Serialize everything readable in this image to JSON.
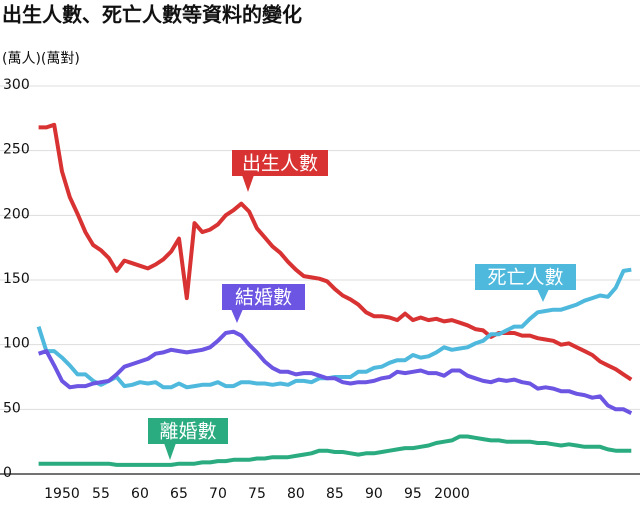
{
  "chart_data": {
    "type": "line",
    "title": "出生人數、死亡人數等資料的變化",
    "y_axis_label": "(萬人)(萬對)",
    "x": [
      1947,
      1948,
      1949,
      1950,
      1951,
      1952,
      1953,
      1954,
      1955,
      1956,
      1957,
      1958,
      1959,
      1960,
      1961,
      1962,
      1963,
      1964,
      1965,
      1966,
      1967,
      1968,
      1969,
      1970,
      1971,
      1972,
      1973,
      1974,
      1975,
      1976,
      1977,
      1978,
      1979,
      1980,
      1981,
      1982,
      1983,
      1984,
      1985,
      1986,
      1987,
      1988,
      1989,
      1990,
      1991,
      1992,
      1993,
      1994,
      1995,
      1996,
      1997,
      1998,
      1999,
      2000,
      2001,
      2002,
      2003,
      2004,
      2005,
      2006,
      2007,
      2008,
      2009,
      2010,
      2011,
      2012,
      2013,
      2014,
      2015,
      2016,
      2017,
      2018,
      2019,
      2020,
      2021,
      2022,
      2023
    ],
    "series": [
      {
        "name": "出生人數",
        "color": "#d83232",
        "values": [
          268,
          268,
          270,
          234,
          214,
          201,
          187,
          177,
          173,
          167,
          157,
          165,
          163,
          161,
          159,
          162,
          166,
          172,
          182,
          136,
          194,
          187,
          189,
          193,
          200,
          204,
          209,
          203,
          190,
          183,
          176,
          171,
          164,
          158,
          153,
          152,
          151,
          149,
          143,
          138,
          135,
          131,
          125,
          122,
          122,
          121,
          119,
          124,
          119,
          121,
          119,
          120,
          118,
          119,
          117,
          115,
          112,
          111,
          106,
          109,
          109,
          109,
          107,
          107,
          105,
          104,
          103,
          100,
          101,
          98,
          95,
          92,
          87,
          84,
          81,
          77,
          73
        ]
      },
      {
        "name": "死亡人數",
        "color": "#4fb9dd",
        "values": [
          114,
          95,
          95,
          90,
          84,
          77,
          77,
          72,
          69,
          72,
          75,
          68,
          69,
          71,
          70,
          71,
          67,
          67,
          70,
          67,
          68,
          69,
          69,
          71,
          68,
          68,
          71,
          71,
          70,
          70,
          69,
          70,
          69,
          72,
          72,
          71,
          74,
          74,
          75,
          75,
          75,
          79,
          79,
          82,
          83,
          86,
          88,
          88,
          92,
          90,
          91,
          94,
          98,
          96,
          97,
          98,
          101,
          103,
          108,
          108,
          111,
          114,
          114,
          120,
          125,
          126,
          127,
          127,
          129,
          131,
          134,
          136,
          138,
          137,
          144,
          157,
          158
        ]
      },
      {
        "name": "結婚數",
        "color": "#6b55e2",
        "values": [
          93,
          95,
          84,
          72,
          67,
          68,
          68,
          70,
          71,
          72,
          77,
          83,
          85,
          87,
          89,
          93,
          94,
          96,
          95,
          94,
          95,
          96,
          98,
          103,
          109,
          110,
          107,
          100,
          94,
          87,
          82,
          79,
          79,
          77,
          78,
          78,
          76,
          74,
          74,
          71,
          70,
          71,
          71,
          72,
          74,
          75,
          79,
          78,
          79,
          80,
          78,
          78,
          76,
          80,
          80,
          76,
          74,
          72,
          71,
          73,
          72,
          73,
          71,
          70,
          66,
          67,
          66,
          64,
          64,
          62,
          61,
          59,
          60,
          53,
          50,
          50,
          47
        ]
      },
      {
        "name": "離婚數",
        "color": "#2aab80",
        "values": [
          8,
          8,
          8,
          8,
          8,
          8,
          8,
          8,
          8,
          8,
          7,
          7,
          7,
          7,
          7,
          7,
          7,
          7,
          8,
          8,
          8,
          9,
          9,
          10,
          10,
          11,
          11,
          11,
          12,
          12,
          13,
          13,
          13,
          14,
          15,
          16,
          18,
          18,
          17,
          17,
          16,
          15,
          16,
          16,
          17,
          18,
          19,
          20,
          20,
          21,
          22,
          24,
          25,
          26,
          29,
          29,
          28,
          27,
          26,
          26,
          25,
          25,
          25,
          25,
          24,
          24,
          23,
          22,
          23,
          22,
          21,
          21,
          21,
          19,
          18,
          18,
          18
        ]
      }
    ],
    "xlim": [
      1946.8,
      2023.6
    ],
    "xticks": [
      {
        "value": 1950,
        "label": "1950"
      },
      {
        "value": 1955,
        "label": "55"
      },
      {
        "value": 1960,
        "label": "60"
      },
      {
        "value": 1965,
        "label": "65"
      },
      {
        "value": 1970,
        "label": "70"
      },
      {
        "value": 1975,
        "label": "75"
      },
      {
        "value": 1980,
        "label": "80"
      },
      {
        "value": 1985,
        "label": "85"
      },
      {
        "value": 1990,
        "label": "90"
      },
      {
        "value": 1995,
        "label": "95"
      },
      {
        "value": 2000,
        "label": "2000"
      }
    ],
    "ylim": [
      0,
      300
    ],
    "yticks": [
      0,
      50,
      100,
      150,
      200,
      250,
      300
    ],
    "grid": true
  }
}
